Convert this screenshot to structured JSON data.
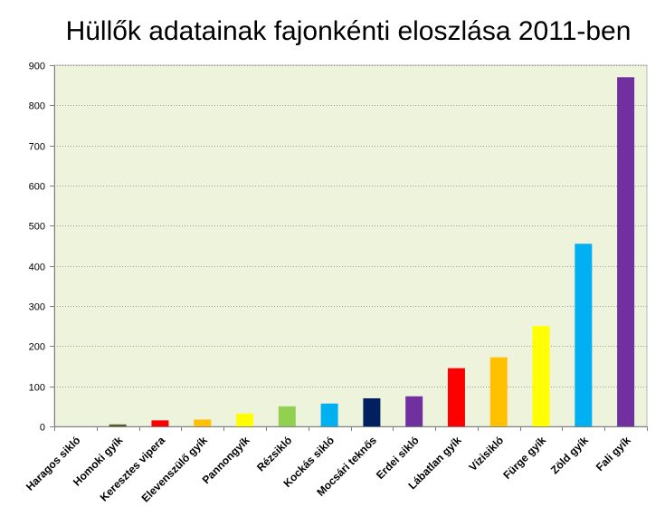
{
  "chart_data": {
    "type": "bar",
    "title": "Hüllők adatainak fajonkénti eloszlása 2011-ben",
    "xlabel": "",
    "ylabel": "",
    "ylim": [
      0,
      900
    ],
    "yticks": [
      0,
      100,
      200,
      300,
      400,
      500,
      600,
      700,
      800,
      900
    ],
    "grid": true,
    "legend": "none",
    "plot_background": "#eef3dc",
    "categories": [
      "Haragos sikló",
      "Homoki gyík",
      "Keresztes vipera",
      "Elevenszülő gyík",
      "Pannongyík",
      "Rézsikló",
      "Kockás sikló",
      "Mocsári teknős",
      "Erdei sikló",
      "Lábatlan gyík",
      "Vízisikló",
      "Fürge gyík",
      "Zöld gyík",
      "Fali gyík"
    ],
    "values": [
      0,
      5,
      15,
      17,
      32,
      50,
      57,
      70,
      75,
      145,
      172,
      250,
      455,
      870
    ],
    "colors": [
      "#808080",
      "#4f6228",
      "#ff0000",
      "#ffc000",
      "#ffff00",
      "#92d050",
      "#00b0f0",
      "#002060",
      "#7030a0",
      "#ff0000",
      "#ffc000",
      "#ffff00",
      "#00b0f0",
      "#7030a0"
    ]
  }
}
